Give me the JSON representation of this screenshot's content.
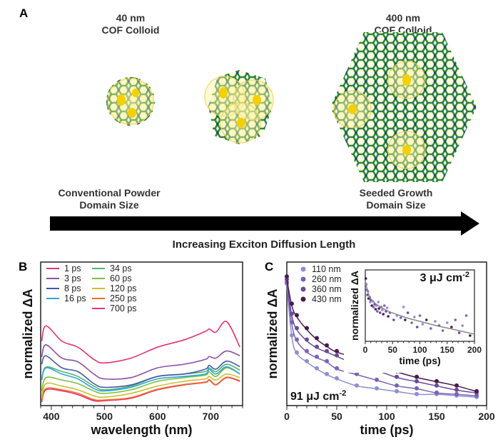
{
  "panel_a": {
    "label": "A",
    "small_colloid": {
      "size": "40 nm",
      "name": "COF Colloid"
    },
    "large_colloid": {
      "size": "400 nm",
      "name": "COF Colloid"
    },
    "left_caption": {
      "line1": "Conventional Powder",
      "line2": "Domain Size"
    },
    "right_caption": {
      "line1": "Seeded Growth",
      "line2": "Domain Size"
    },
    "arrow_label": "Increasing Exciton Diffusion Length",
    "colors": {
      "lattice": "#2e8b2e",
      "node": "#1f3f8f",
      "exciton": "#f5d000"
    }
  },
  "chart_data": [
    {
      "panel_label": "B",
      "type": "line",
      "xlabel": "wavelength (nm)",
      "ylabel": "normalized ΔA",
      "xlim": [
        380,
        760
      ],
      "ylim": [
        0,
        1
      ],
      "xticks": [
        400,
        500,
        600,
        700
      ],
      "legend": "top-left",
      "grid": false,
      "x": [
        382,
        390,
        420,
        450,
        480,
        500,
        550,
        600,
        650,
        690,
        697,
        710,
        730,
        755
      ],
      "series": [
        {
          "name": "1 ps",
          "color": "#e8336f",
          "values": [
            0.449,
            0.556,
            0.449,
            0.407,
            0.322,
            0.297,
            0.331,
            0.407,
            0.458,
            0.517,
            0.534,
            0.512,
            0.585,
            0.407
          ]
        },
        {
          "name": "3 ps",
          "color": "#8e4fa8",
          "values": [
            0.339,
            0.424,
            0.331,
            0.305,
            0.22,
            0.186,
            0.195,
            0.263,
            0.288,
            0.322,
            0.342,
            0.331,
            0.381,
            0.347
          ]
        },
        {
          "name": "8 ps",
          "color": "#4b57a8",
          "values": [
            0.288,
            0.347,
            0.263,
            0.237,
            0.153,
            0.127,
            0.144,
            0.203,
            0.22,
            0.254,
            0.28,
            0.254,
            0.31,
            0.271
          ]
        },
        {
          "name": "16 ps",
          "color": "#2ea3e0",
          "values": [
            0.178,
            0.263,
            0.22,
            0.186,
            0.119,
            0.102,
            0.127,
            0.186,
            0.203,
            0.22,
            0.254,
            0.22,
            0.271,
            0.22
          ]
        },
        {
          "name": "34 ps",
          "color": "#4bb86b",
          "values": [
            0.186,
            0.268,
            0.237,
            0.203,
            0.136,
            0.11,
            0.136,
            0.203,
            0.22,
            0.237,
            0.263,
            0.237,
            0.288,
            0.246
          ]
        },
        {
          "name": "60 ps",
          "color": "#7dbf3a",
          "values": [
            0.102,
            0.195,
            0.178,
            0.153,
            0.102,
            0.085,
            0.11,
            0.169,
            0.195,
            0.212,
            0.237,
            0.203,
            0.263,
            0.22
          ]
        },
        {
          "name": "120 ps",
          "color": "#c8c030",
          "values": [
            0.059,
            0.153,
            0.136,
            0.11,
            0.068,
            0.059,
            0.085,
            0.136,
            0.169,
            0.186,
            0.203,
            0.178,
            0.22,
            0.195
          ]
        },
        {
          "name": "250 ps",
          "color": "#f06a2a",
          "values": [
            0.034,
            0.119,
            0.11,
            0.085,
            0.042,
            0.039,
            0.056,
            0.114,
            0.147,
            0.164,
            0.181,
            0.147,
            0.198,
            0.173
          ]
        },
        {
          "name": "700 ps",
          "color": "#e8336f",
          "values": [
            0.025,
            0.11,
            0.102,
            0.076,
            0.034,
            0.034,
            0.051,
            0.11,
            0.144,
            0.161,
            0.178,
            0.144,
            0.195,
            0.169
          ]
        }
      ]
    },
    {
      "panel_label": "C",
      "type": "scatter",
      "xlabel": "time (ps)",
      "ylabel": "normalized ΔA",
      "xlim": [
        0,
        200
      ],
      "ylim": [
        0,
        1
      ],
      "xticks": [
        0,
        50,
        100,
        150,
        200
      ],
      "legend": "top-left",
      "annotation": {
        "value": "91",
        "unit": "μJ cm",
        "exp": "-2"
      },
      "x": [
        0,
        5,
        10,
        20,
        30,
        40,
        50,
        70,
        90,
        110,
        130,
        150,
        170,
        190
      ],
      "series": [
        {
          "name": "110 nm",
          "color": "#8d8fd0",
          "values": [
            0.85,
            0.49,
            0.37,
            0.31,
            0.26,
            0.22,
            0.19,
            0.14,
            0.12,
            0.1,
            0.08,
            0.08,
            0.07,
            0.06
          ]
        },
        {
          "name": "260 nm",
          "color": "#7b62b8",
          "values": [
            0.86,
            0.58,
            0.46,
            0.38,
            0.34,
            0.31,
            0.26,
            0.22,
            0.18,
            0.14,
            0.12,
            0.09,
            0.08,
            0.07
          ]
        },
        {
          "name": "360 nm",
          "color": "#6a4a9e",
          "values": [
            0.88,
            0.64,
            0.54,
            0.46,
            0.41,
            0.38,
            0.35,
            0.29,
            0.25,
            0.2,
            0.17,
            0.14,
            0.11,
            0.09
          ]
        },
        {
          "name": "430 nm",
          "color": "#4a1a4a",
          "values": [
            0.9,
            0.71,
            0.63,
            0.54,
            0.47,
            0.42,
            0.38,
            0.34,
            0.29,
            0.24,
            0.2,
            0.17,
            0.14,
            0.1
          ]
        }
      ],
      "inset": {
        "type": "scatter",
        "xlabel": "time (ps)",
        "ylabel": "normalized ΔA",
        "xlim": [
          0,
          200
        ],
        "ylim": [
          0,
          1
        ],
        "xticks": [
          0,
          50,
          100,
          150,
          200
        ],
        "annotation": {
          "value": "3",
          "unit": "μJ cm",
          "exp": "-2"
        },
        "fit_color": "#888888",
        "fit": {
          "x": [
            0,
            5,
            10,
            20,
            40,
            60,
            80,
            100,
            130,
            160,
            200
          ],
          "y": [
            0.85,
            0.68,
            0.6,
            0.52,
            0.43,
            0.37,
            0.32,
            0.28,
            0.22,
            0.17,
            0.1
          ]
        },
        "points": [
          [
            1,
            0.88,
            3
          ],
          [
            2,
            0.8,
            0
          ],
          [
            3,
            0.72,
            1
          ],
          [
            4,
            0.65,
            2
          ],
          [
            5,
            0.7,
            0
          ],
          [
            6,
            0.6,
            3
          ],
          [
            8,
            0.62,
            1
          ],
          [
            9,
            0.55,
            0
          ],
          [
            10,
            0.58,
            2
          ],
          [
            12,
            0.5,
            3
          ],
          [
            14,
            0.56,
            0
          ],
          [
            15,
            0.48,
            1
          ],
          [
            17,
            0.52,
            2
          ],
          [
            19,
            0.45,
            3
          ],
          [
            20,
            0.5,
            0
          ],
          [
            22,
            0.42,
            1
          ],
          [
            24,
            0.55,
            0
          ],
          [
            25,
            0.46,
            3
          ],
          [
            27,
            0.4,
            2
          ],
          [
            29,
            0.48,
            1
          ],
          [
            31,
            0.44,
            0
          ],
          [
            33,
            0.38,
            3
          ],
          [
            35,
            0.5,
            1
          ],
          [
            38,
            0.42,
            2
          ],
          [
            40,
            0.47,
            0
          ],
          [
            42,
            0.35,
            3
          ],
          [
            45,
            0.4,
            1
          ],
          [
            52,
            0.3,
            2
          ],
          [
            58,
            0.36,
            0
          ],
          [
            65,
            0.33,
            1
          ],
          [
            70,
            0.48,
            0
          ],
          [
            73,
            0.3,
            3
          ],
          [
            78,
            0.4,
            2
          ],
          [
            85,
            0.26,
            1
          ],
          [
            90,
            0.34,
            0
          ],
          [
            95,
            0.2,
            2
          ],
          [
            100,
            0.36,
            1
          ],
          [
            105,
            0.24,
            0
          ],
          [
            112,
            0.3,
            3
          ],
          [
            120,
            0.18,
            1
          ],
          [
            128,
            0.28,
            0
          ],
          [
            135,
            0.22,
            2
          ],
          [
            142,
            0.15,
            1
          ],
          [
            150,
            0.26,
            0
          ],
          [
            158,
            0.2,
            3
          ],
          [
            165,
            0.3,
            1
          ],
          [
            172,
            0.12,
            2
          ],
          [
            178,
            0.22,
            0
          ],
          [
            185,
            0.36,
            1
          ],
          [
            192,
            0.08,
            3
          ]
        ]
      }
    }
  ]
}
